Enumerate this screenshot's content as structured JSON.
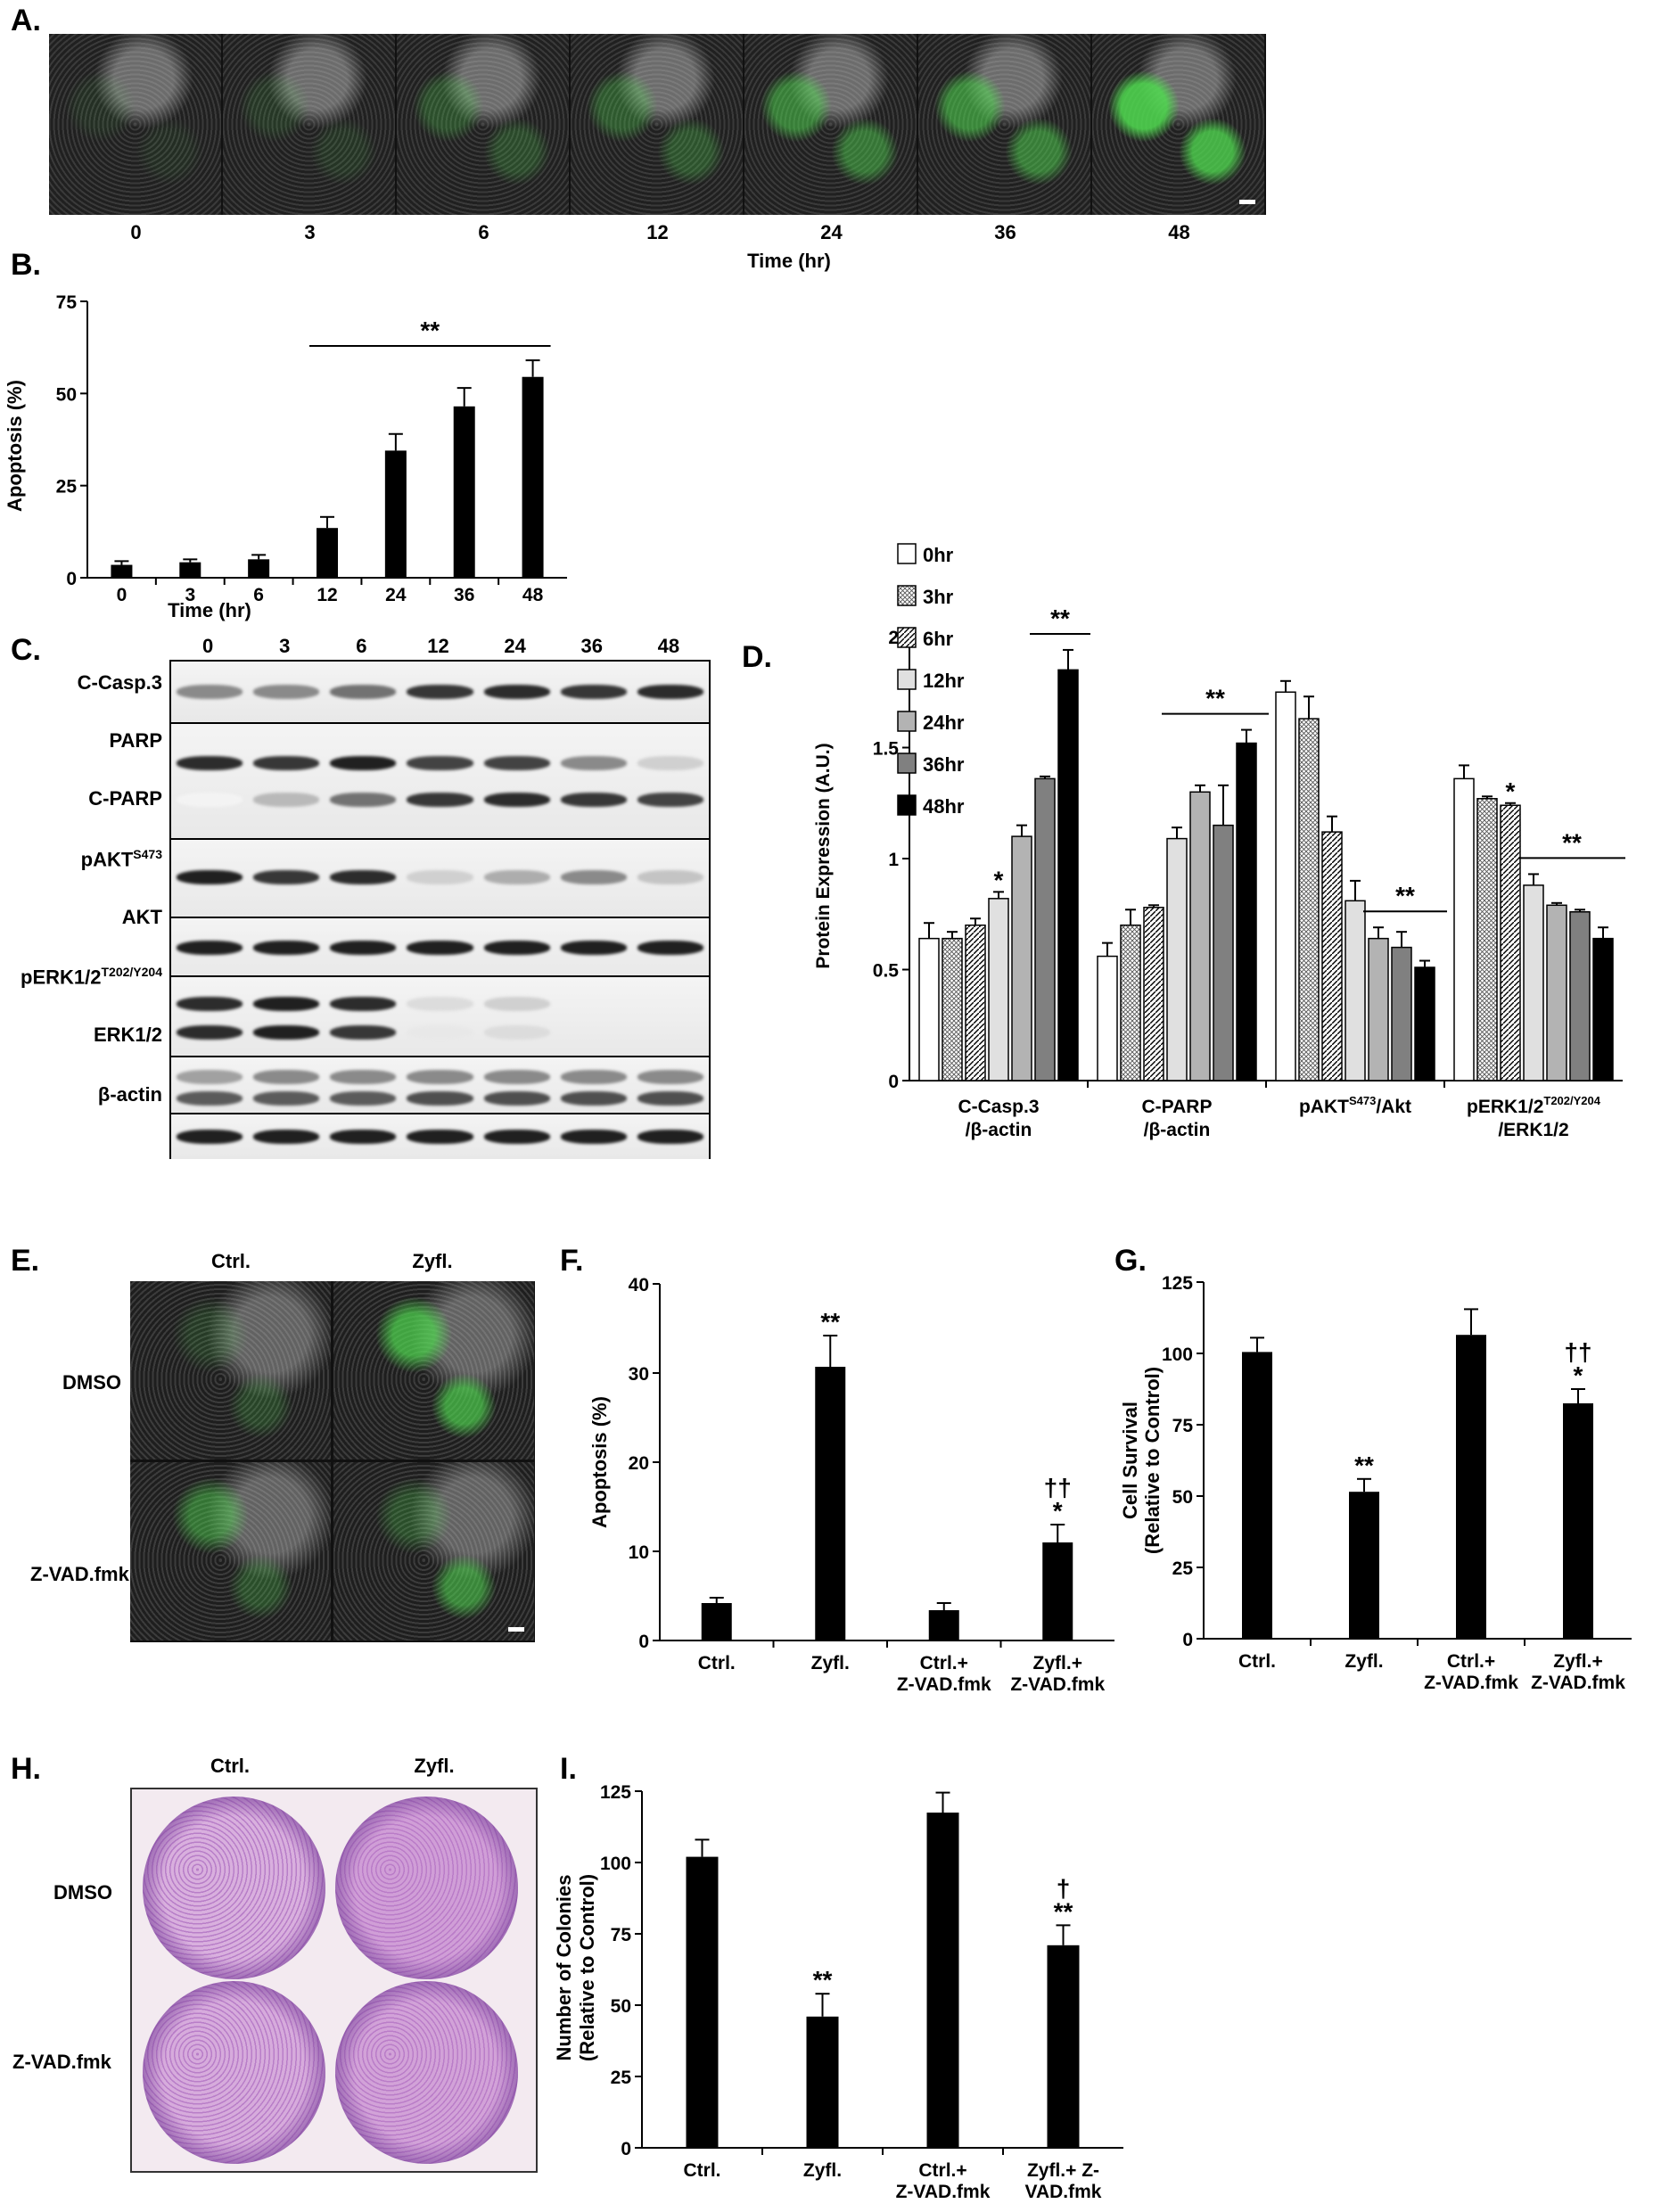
{
  "panels": {
    "A": {
      "label": "A.",
      "time_labels": [
        "0",
        "3",
        "6",
        "12",
        "24",
        "36",
        "48"
      ],
      "xlabel": "Time (hr)"
    },
    "B": {
      "label": "B.",
      "chart_data": {
        "type": "bar",
        "categories": [
          "0",
          "3",
          "6",
          "12",
          "24",
          "36",
          "48"
        ],
        "values": [
          3.5,
          4.2,
          5.0,
          13.5,
          34.5,
          46.5,
          54.5
        ],
        "errors": [
          1.0,
          0.8,
          1.2,
          3.0,
          4.5,
          5.0,
          4.5
        ],
        "xlabel": "Time (hr)",
        "ylabel": "Apoptosis (%)",
        "ylim": [
          0,
          75
        ],
        "yticks": [
          0,
          25,
          50,
          75
        ],
        "significance": {
          "from": "12",
          "to": "48",
          "text": "**"
        }
      }
    },
    "C": {
      "label": "C.",
      "lanes": [
        "0",
        "3",
        "6",
        "12",
        "24",
        "36",
        "48"
      ],
      "rows": [
        {
          "label": "C-Casp.3",
          "sup": ""
        },
        {
          "label": "PARP",
          "sup": ""
        },
        {
          "label": "C-PARP",
          "sup": ""
        },
        {
          "label": "pAKT",
          "sup": "S473"
        },
        {
          "label": "AKT",
          "sup": ""
        },
        {
          "label": "pERK1/2",
          "sup": "T202/Y204"
        },
        {
          "label": "ERK1/2",
          "sup": ""
        },
        {
          "label": "β-actin",
          "sup": ""
        }
      ]
    },
    "D": {
      "label": "D.",
      "chart_data": {
        "type": "bar",
        "groups": [
          {
            "line1": "C-Casp.3",
            "line1_sup": "",
            "line1_tail": "",
            "line2": "/β-actin"
          },
          {
            "line1": "C-PARP",
            "line1_sup": "",
            "line1_tail": "",
            "line2": "/β-actin"
          },
          {
            "line1": "pAKT",
            "line1_sup": "S473",
            "line1_tail": "/Akt",
            "line2": ""
          },
          {
            "line1": "pERK1/2",
            "line1_sup": "T202/Y204",
            "line1_tail": "",
            "line2": "/ERK1/2"
          }
        ],
        "series": [
          {
            "name": "0hr",
            "values": [
              0.64,
              0.56,
              1.75,
              1.36
            ],
            "errors": [
              0.07,
              0.06,
              0.05,
              0.06
            ],
            "fill": "#ffffff",
            "pattern": "none"
          },
          {
            "name": "3hr",
            "values": [
              0.64,
              0.7,
              1.63,
              1.27
            ],
            "errors": [
              0.03,
              0.07,
              0.1,
              0.01
            ],
            "fill": "#ffffff",
            "pattern": "dots"
          },
          {
            "name": "6hr",
            "values": [
              0.7,
              0.78,
              1.12,
              1.24
            ],
            "errors": [
              0.03,
              0.01,
              0.07,
              0.01
            ],
            "fill": "#ffffff",
            "pattern": "hatch"
          },
          {
            "name": "12hr",
            "values": [
              0.82,
              1.09,
              0.81,
              0.88
            ],
            "errors": [
              0.03,
              0.05,
              0.09,
              0.05
            ],
            "fill": "#e0e0e0",
            "pattern": "none"
          },
          {
            "name": "24hr",
            "values": [
              1.1,
              1.3,
              0.64,
              0.79
            ],
            "errors": [
              0.05,
              0.03,
              0.05,
              0.01
            ],
            "fill": "#b3b3b3",
            "pattern": "none"
          },
          {
            "name": "36hr",
            "values": [
              1.36,
              1.15,
              0.6,
              0.76
            ],
            "errors": [
              0.01,
              0.18,
              0.07,
              0.01
            ],
            "fill": "#808080",
            "pattern": "none"
          },
          {
            "name": "48hr",
            "values": [
              1.85,
              1.52,
              0.51,
              0.64
            ],
            "errors": [
              0.09,
              0.06,
              0.03,
              0.05
            ],
            "fill": "#000000",
            "pattern": "none"
          }
        ],
        "ylabel": "Protein Expression (A.U.)",
        "ylim": [
          0,
          2
        ],
        "yticks": [
          "0",
          "0.5",
          "1",
          "1.5",
          "2"
        ],
        "annotations": [
          {
            "group": 0,
            "series": 3,
            "text": "*"
          },
          {
            "group": 0,
            "from_series": 5,
            "to_series": 6,
            "text": "**"
          },
          {
            "group": 1,
            "from_series": 3,
            "to_series": 6,
            "text": "**"
          },
          {
            "group": 2,
            "from_series": 4,
            "to_series": 6,
            "text": "**"
          },
          {
            "group": 3,
            "series": 2,
            "text": "*"
          },
          {
            "group": 3,
            "from_series": 3,
            "to_series": 6,
            "text": "**"
          }
        ]
      }
    },
    "E": {
      "label": "E.",
      "cols": [
        "Ctrl.",
        "Zyfl."
      ],
      "rows": [
        "DMSO",
        "Z-VAD.fmk"
      ]
    },
    "F": {
      "label": "F.",
      "chart_data": {
        "type": "bar",
        "categories": [
          [
            "Ctrl."
          ],
          [
            "Zyfl."
          ],
          [
            "Ctrl.+",
            "Z-VAD.fmk"
          ],
          [
            "Zyfl.+",
            "Z-VAD.fmk"
          ]
        ],
        "values": [
          4.2,
          30.7,
          3.4,
          11.0
        ],
        "errors": [
          0.6,
          3.5,
          0.8,
          2.0
        ],
        "marks": [
          "",
          "**",
          "",
          "††\n*"
        ],
        "ylabel": "Apoptosis (%)",
        "ylim": [
          0,
          40
        ],
        "yticks": [
          0,
          10,
          20,
          30,
          40
        ]
      }
    },
    "G": {
      "label": "G.",
      "chart_data": {
        "type": "bar",
        "categories": [
          [
            "Ctrl."
          ],
          [
            "Zyfl."
          ],
          [
            "Ctrl.+",
            "Z-VAD.fmk"
          ],
          [
            "Zyfl.+",
            "Z-VAD.fmk"
          ]
        ],
        "values": [
          100.5,
          51.5,
          106.5,
          82.5
        ],
        "errors": [
          5.0,
          4.5,
          9.0,
          5.0
        ],
        "marks": [
          "",
          "**",
          "",
          "††\n*"
        ],
        "ylabel": [
          "Cell Survival",
          "(Relative to Control)"
        ],
        "ylim": [
          0,
          125
        ],
        "yticks": [
          0,
          25,
          50,
          75,
          100,
          125
        ]
      }
    },
    "H": {
      "label": "H.",
      "cols": [
        "Ctrl.",
        "Zyfl."
      ],
      "rows": [
        "DMSO",
        "Z-VAD.fmk"
      ]
    },
    "I": {
      "label": "I.",
      "chart_data": {
        "type": "bar",
        "categories": [
          [
            "Ctrl."
          ],
          [
            "Zyfl."
          ],
          [
            "Ctrl.+",
            "Z-VAD.fmk"
          ],
          [
            "Zyfl.+ Z-",
            "VAD.fmk"
          ]
        ],
        "values": [
          102,
          46,
          117.5,
          71
        ],
        "errors": [
          6.0,
          8.0,
          7.0,
          7.0
        ],
        "marks": [
          "",
          "**",
          "",
          "†\n**"
        ],
        "ylabel": [
          "Number of Colonies",
          "(Relative to Control)"
        ],
        "ylim": [
          0,
          125
        ],
        "yticks": [
          0,
          25,
          50,
          75,
          100,
          125
        ]
      }
    }
  }
}
